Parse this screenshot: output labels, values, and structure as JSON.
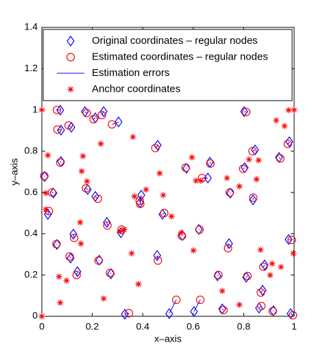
{
  "chart_data": {
    "type": "scatter",
    "xlabel": "x–axis",
    "ylabel": "y–axis",
    "xlim": [
      0,
      1
    ],
    "ylim": [
      0,
      1.4
    ],
    "xticks": [
      0,
      0.2,
      0.4,
      0.6,
      0.8,
      1
    ],
    "yticks": [
      0,
      0.2,
      0.4,
      0.6,
      0.8,
      1,
      1.2,
      1.4
    ],
    "legend": "north",
    "grid": false,
    "series": [
      {
        "name": "Original coordinates – regular nodes",
        "color": "#0000ff",
        "marker": "diamond",
        "x": [
          0.073,
          0.076,
          0.117,
          0.171,
          0.212,
          0.245,
          0.304,
          0.076,
          0.011,
          0.046,
          0.024,
          0.06,
          0.114,
          0.141,
          0.125,
          0.182,
          0.212,
          0.258,
          0.228,
          0.274,
          0.313,
          0.329,
          0.394,
          0.389,
          0.459,
          0.457,
          0.478,
          0.505,
          0.557,
          0.573,
          0.603,
          0.622,
          0.658,
          0.666,
          0.696,
          0.715,
          0.742,
          0.747,
          0.802,
          0.804,
          0.81,
          0.837,
          0.845,
          0.861,
          0.875,
          0.883,
          0.918,
          0.94,
          0.981,
          0.978,
          0.986
        ],
        "values": [
          0.999,
          0.902,
          0.916,
          0.992,
          0.962,
          0.992,
          0.942,
          0.75,
          0.677,
          0.597,
          0.494,
          0.348,
          0.282,
          0.216,
          0.398,
          0.614,
          0.581,
          0.455,
          0.272,
          0.206,
          0.405,
          0.01,
          0.587,
          0.551,
          0.829,
          0.295,
          0.494,
          0.013,
          0.391,
          0.717,
          0.023,
          0.421,
          0.67,
          0.747,
          0.196,
          0.036,
          0.352,
          0.597,
          0.992,
          0.72,
          0.189,
          0.564,
          0.806,
          0.04,
          0.126,
          0.249,
          0.027,
          0.77,
          0.846,
          0.372,
          0.013
        ]
      },
      {
        "name": "Estimated coordinates – regular nodes",
        "color": "#ff0000",
        "marker": "circle",
        "x": [
          0.06,
          0.062,
          0.106,
          0.178,
          0.205,
          0.238,
          0.278,
          0.073,
          0.01,
          0.04,
          0.028,
          0.058,
          0.11,
          0.138,
          0.128,
          0.175,
          0.222,
          0.26,
          0.225,
          0.27,
          0.316,
          0.345,
          0.39,
          0.388,
          0.45,
          0.46,
          0.485,
          0.533,
          0.555,
          0.57,
          0.628,
          0.625,
          0.635,
          0.668,
          0.7,
          0.72,
          0.738,
          0.745,
          0.81,
          0.798,
          0.815,
          0.838,
          0.835,
          0.87,
          0.868,
          0.878,
          0.915,
          0.945,
          0.975,
          0.99,
          0.995
        ],
        "values": [
          1.0,
          0.905,
          0.925,
          0.985,
          0.955,
          0.975,
          0.93,
          0.745,
          0.68,
          0.6,
          0.51,
          0.35,
          0.29,
          0.2,
          0.38,
          0.62,
          0.57,
          0.44,
          0.27,
          0.21,
          0.42,
          0.015,
          0.545,
          0.56,
          0.815,
          0.27,
          0.5,
          0.08,
          0.39,
          0.72,
          0.08,
          0.42,
          0.67,
          0.74,
          0.2,
          0.03,
          0.33,
          0.6,
          0.99,
          0.715,
          0.195,
          0.575,
          0.8,
          0.05,
          0.115,
          0.24,
          0.025,
          0.765,
          0.835,
          0.37,
          0.005
        ]
      },
      {
        "name": "Estimation errors",
        "color": "#0000ff",
        "marker": "line"
      },
      {
        "name": "Anchor coordinates",
        "color": "#ff0000",
        "marker": "star",
        "x": [
          0,
          0,
          0.024,
          0.016,
          0.016,
          0.073,
          0.068,
          0.098,
          0.152,
          0.155,
          0.163,
          0.158,
          0.179,
          0.234,
          0.245,
          0.31,
          0.326,
          0.356,
          0.361,
          0.367,
          0.383,
          0.413,
          0.467,
          0.481,
          0.514,
          0.552,
          0.595,
          0.611,
          0.63,
          0.601,
          0.715,
          0.734,
          0.783,
          0.783,
          0.821,
          0.851,
          0.913,
          0.905,
          0.929,
          0.948,
          0.962,
          0.978,
          1.0,
          0.997,
          0.859,
          0.867
        ],
        "values": [
          1.0,
          0.0,
          0.78,
          0.518,
          0.597,
          0.066,
          0.192,
          0.173,
          0.455,
          0.352,
          0.776,
          0.703,
          0.654,
          0.836,
          0.086,
          0.411,
          0.421,
          0.305,
          0.869,
          0.581,
          0.156,
          0.614,
          0.693,
          0.587,
          0.484,
          0.405,
          0.77,
          0.657,
          0.657,
          0.319,
          0.123,
          0.67,
          0.056,
          0.63,
          0.76,
          0.664,
          0.255,
          0.199,
          0.949,
          0.239,
          0.922,
          0.999,
          1.0,
          0.305,
          0.756,
          0.322
        ]
      }
    ]
  }
}
